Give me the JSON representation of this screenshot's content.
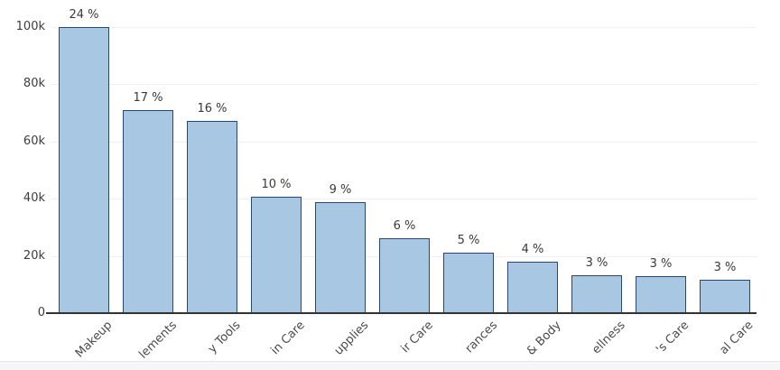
{
  "chart_data": {
    "type": "bar",
    "title": "",
    "xlabel": "",
    "ylabel": "",
    "ylim": [
      0,
      100000
    ],
    "grid": true,
    "legend": "none",
    "y_ticks": [
      {
        "label": "100k",
        "value": 100000
      },
      {
        "label": "80k",
        "value": 80000
      },
      {
        "label": "60k",
        "value": 60000
      },
      {
        "label": "40k",
        "value": 40000
      },
      {
        "label": "20k",
        "value": 20000
      },
      {
        "label": "0",
        "value": 0
      }
    ],
    "bars": [
      {
        "category_visible": "Makeup",
        "value": 100000,
        "pct_label": "24 %"
      },
      {
        "category_visible": "lements",
        "value": 71000,
        "pct_label": "17 %"
      },
      {
        "category_visible": "y Tools",
        "value": 67200,
        "pct_label": "16 %"
      },
      {
        "category_visible": "in Care",
        "value": 40600,
        "pct_label": "10 %"
      },
      {
        "category_visible": "upplies",
        "value": 38700,
        "pct_label": "9 %"
      },
      {
        "category_visible": "ir Care",
        "value": 26100,
        "pct_label": "6 %"
      },
      {
        "category_visible": "rances",
        "value": 21100,
        "pct_label": "5 %"
      },
      {
        "category_visible": "& Body",
        "value": 18000,
        "pct_label": "4 %"
      },
      {
        "category_visible": "ellness",
        "value": 13200,
        "pct_label": "3 %"
      },
      {
        "category_visible": "'s Care",
        "value": 12900,
        "pct_label": "3 %"
      },
      {
        "category_visible": "al Care",
        "value": 11500,
        "pct_label": "3 %"
      }
    ]
  },
  "colors": {
    "bar_fill": "#a7c7e2",
    "bar_border": "#26496d",
    "axis_line": "#333333",
    "gridline": "#f0f0f2",
    "tick_text": "#3c3c3c",
    "xlabel_text": "#4a4a4a",
    "bottom_strip_bg": "#f7f7f9",
    "bottom_strip_border": "#e8e8ea",
    "background": "#ffffff"
  }
}
